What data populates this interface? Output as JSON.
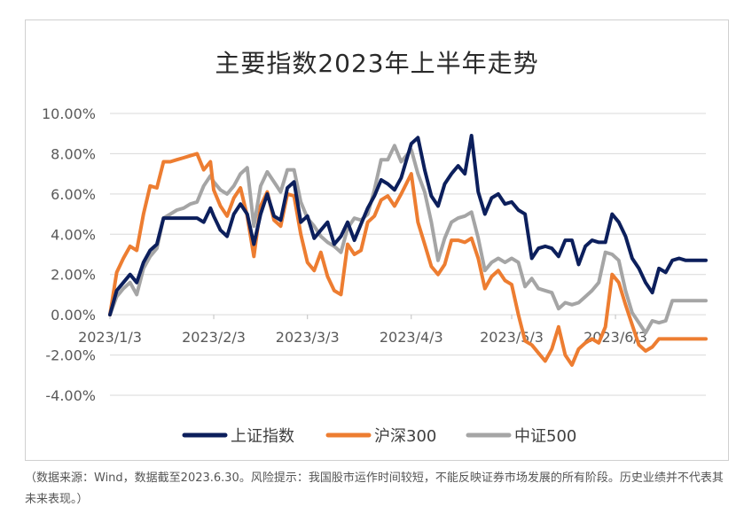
{
  "chart_data": {
    "type": "line",
    "title": "主要指数2023年上半年走势",
    "xlabel": "",
    "ylabel": "",
    "ylim": [
      -4,
      10
    ],
    "y_ticks": [
      "10.00%",
      "8.00%",
      "6.00%",
      "4.00%",
      "2.00%",
      "0.00%",
      "-2.00%",
      "-4.00%"
    ],
    "y_tick_values": [
      10,
      8,
      6,
      4,
      2,
      0,
      -2,
      -4
    ],
    "x_ticks": [
      "2023/1/3",
      "2023/2/3",
      "2023/3/3",
      "2023/4/3",
      "2023/5/3",
      "2023/6/3"
    ],
    "x_tick_days": [
      0,
      31,
      59,
      90,
      120,
      151
    ],
    "x_range_days": [
      0,
      178
    ],
    "grid": "horizontal",
    "legend_position": "bottom",
    "series": [
      {
        "name": "上证指数",
        "color": "#0c1f5c",
        "x": [
          0,
          2,
          4,
          6,
          8,
          10,
          12,
          14,
          16,
          18,
          20,
          22,
          24,
          26,
          28,
          30,
          31,
          33,
          35,
          37,
          39,
          41,
          43,
          45,
          47,
          49,
          51,
          53,
          55,
          57,
          59,
          61,
          63,
          65,
          67,
          69,
          71,
          73,
          75,
          77,
          79,
          81,
          83,
          85,
          87,
          90,
          92,
          94,
          96,
          98,
          100,
          102,
          104,
          106,
          108,
          110,
          112,
          114,
          116,
          118,
          120,
          122,
          124,
          126,
          128,
          130,
          132,
          134,
          136,
          138,
          140,
          142,
          144,
          146,
          148,
          150,
          152,
          154,
          156,
          158,
          160,
          162,
          164,
          166,
          168,
          170,
          172,
          174,
          176,
          178
        ],
        "y": [
          0,
          1.2,
          1.6,
          2.0,
          1.6,
          2.6,
          3.2,
          3.5,
          4.8,
          4.8,
          4.8,
          4.8,
          4.8,
          4.8,
          4.6,
          5.3,
          4.9,
          4.2,
          3.9,
          5.0,
          5.5,
          5.0,
          3.5,
          5.0,
          6.0,
          4.9,
          4.7,
          6.3,
          6.6,
          4.6,
          4.9,
          3.8,
          4.2,
          4.6,
          3.5,
          3.9,
          4.6,
          3.7,
          4.5,
          5.3,
          5.9,
          6.7,
          6.5,
          6.2,
          6.8,
          8.5,
          8.8,
          7.2,
          5.9,
          5.4,
          6.5,
          7.0,
          7.4,
          7.0,
          8.9,
          6.1,
          5.0,
          5.8,
          6.0,
          5.5,
          5.6,
          5.2,
          5.0,
          2.8,
          3.3,
          3.4,
          3.3,
          2.9,
          3.7,
          3.7,
          2.5,
          3.4,
          3.7,
          3.6,
          3.6,
          5.0,
          4.6,
          3.9,
          2.8,
          2.3,
          1.6,
          1.1,
          2.3,
          2.1,
          2.7,
          2.8,
          2.7,
          2.7,
          2.7,
          2.7
        ]
      },
      {
        "name": "沪深300",
        "color": "#ed7d31",
        "x": [
          0,
          2,
          4,
          6,
          8,
          10,
          12,
          14,
          16,
          18,
          20,
          22,
          24,
          26,
          28,
          30,
          31,
          33,
          35,
          37,
          39,
          41,
          43,
          45,
          47,
          49,
          51,
          53,
          55,
          57,
          59,
          61,
          63,
          65,
          67,
          69,
          71,
          73,
          75,
          77,
          79,
          81,
          83,
          85,
          87,
          90,
          92,
          94,
          96,
          98,
          100,
          102,
          104,
          106,
          108,
          110,
          112,
          114,
          116,
          118,
          120,
          122,
          124,
          126,
          128,
          130,
          132,
          134,
          136,
          138,
          140,
          142,
          144,
          146,
          148,
          150,
          152,
          154,
          156,
          158,
          160,
          162,
          164,
          166,
          168,
          170,
          172,
          174,
          176,
          178
        ],
        "y": [
          0,
          2.1,
          2.8,
          3.4,
          3.2,
          5.0,
          6.4,
          6.3,
          7.6,
          7.6,
          7.7,
          7.8,
          7.9,
          8.0,
          7.2,
          7.6,
          6.2,
          5.4,
          4.9,
          5.8,
          6.3,
          4.9,
          2.9,
          5.4,
          6.1,
          4.7,
          4.4,
          6.0,
          5.9,
          4.0,
          2.6,
          2.2,
          3.1,
          1.9,
          1.2,
          1.0,
          3.5,
          3.0,
          3.2,
          4.6,
          4.9,
          5.7,
          5.9,
          5.4,
          6.0,
          7.0,
          4.6,
          3.5,
          2.4,
          2.0,
          2.5,
          3.7,
          3.7,
          3.6,
          3.8,
          2.8,
          1.3,
          1.9,
          2.2,
          1.7,
          1.5,
          0.0,
          -1.3,
          -1.5,
          -1.9,
          -2.3,
          -1.7,
          -0.6,
          -2.0,
          -2.5,
          -1.7,
          -1.4,
          -1.2,
          -1.4,
          -0.6,
          2.0,
          1.6,
          0.5,
          -0.5,
          -1.5,
          -1.8,
          -1.6,
          -1.2,
          -1.2,
          -1.2,
          -1.2,
          -1.2,
          -1.2,
          -1.2,
          -1.2
        ]
      },
      {
        "name": "中证500",
        "color": "#a5a5a5",
        "x": [
          0,
          2,
          4,
          6,
          8,
          10,
          12,
          14,
          16,
          18,
          20,
          22,
          24,
          26,
          28,
          30,
          31,
          33,
          35,
          37,
          39,
          41,
          43,
          45,
          47,
          49,
          51,
          53,
          55,
          57,
          59,
          61,
          63,
          65,
          67,
          69,
          71,
          73,
          75,
          77,
          79,
          81,
          83,
          85,
          87,
          90,
          92,
          94,
          96,
          98,
          100,
          102,
          104,
          106,
          108,
          110,
          112,
          114,
          116,
          118,
          120,
          122,
          124,
          126,
          128,
          130,
          132,
          134,
          136,
          138,
          140,
          142,
          144,
          146,
          148,
          150,
          152,
          154,
          156,
          158,
          160,
          162,
          164,
          166,
          168,
          170,
          172,
          174,
          176,
          178
        ],
        "y": [
          0,
          0.9,
          1.3,
          1.6,
          1.0,
          2.3,
          2.9,
          3.3,
          4.8,
          5.0,
          5.2,
          5.3,
          5.5,
          5.6,
          6.4,
          6.9,
          6.6,
          6.2,
          6.0,
          6.4,
          7.0,
          7.3,
          4.4,
          6.4,
          7.1,
          6.6,
          6.1,
          7.2,
          7.2,
          5.6,
          4.8,
          4.4,
          3.9,
          3.6,
          3.4,
          3.1,
          4.3,
          4.8,
          4.7,
          5.0,
          6.2,
          7.7,
          7.7,
          8.4,
          7.6,
          8.2,
          7.0,
          6.1,
          4.6,
          2.7,
          3.8,
          4.6,
          4.8,
          4.9,
          5.1,
          3.8,
          2.2,
          2.6,
          2.8,
          2.6,
          2.8,
          2.6,
          1.4,
          1.8,
          1.3,
          1.2,
          1.1,
          0.3,
          0.6,
          0.5,
          0.6,
          0.9,
          1.2,
          1.6,
          3.1,
          3.0,
          2.7,
          1.2,
          0.1,
          -0.4,
          -0.9,
          -0.3,
          -0.4,
          -0.3,
          0.7,
          0.7,
          0.7,
          0.7,
          0.7,
          0.7
        ]
      }
    ]
  },
  "source_note": "（数据来源：Wind，数据截至2023.6.30。风险提示：我国股市运作时间较短，不能反映证券市场发展的所有阶段。历史业绩并不代表其未来表现。）"
}
